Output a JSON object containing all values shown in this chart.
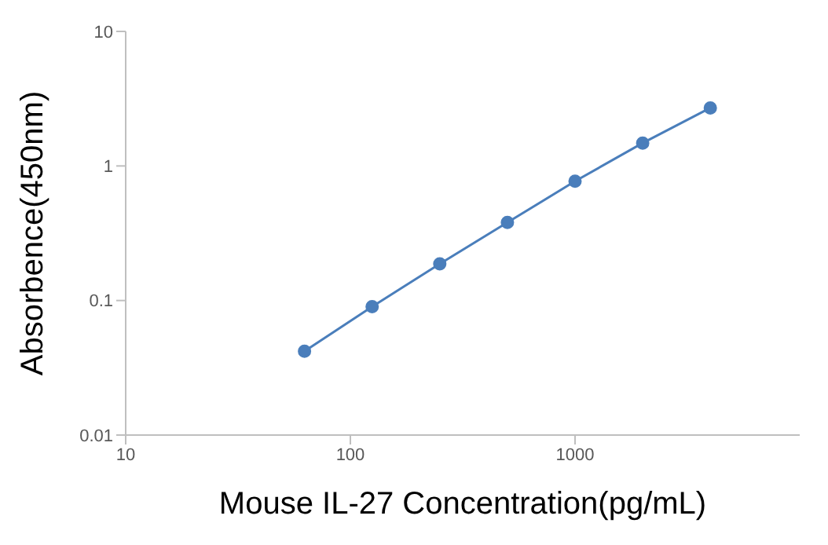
{
  "chart_data": {
    "type": "line",
    "xlabel": "Mouse IL-27 Concentration(pg/mL)",
    "ylabel": "Absorbence(450nm)",
    "x": [
      62.5,
      125,
      250,
      500,
      1000,
      2000,
      4000
    ],
    "series": [
      {
        "color": "#4a7ebb",
        "values": [
          0.042,
          0.09,
          0.187,
          0.38,
          0.77,
          1.48,
          2.7
        ]
      }
    ],
    "log": "xy",
    "xlim": [
      10,
      10000
    ],
    "xticks": [
      10,
      100,
      1000
    ],
    "ylim": [
      0.01,
      10
    ],
    "yticks": [
      0.01,
      0.1,
      1,
      10
    ],
    "grid": false,
    "legend": false,
    "marker": "circle",
    "line_style": "solid"
  }
}
